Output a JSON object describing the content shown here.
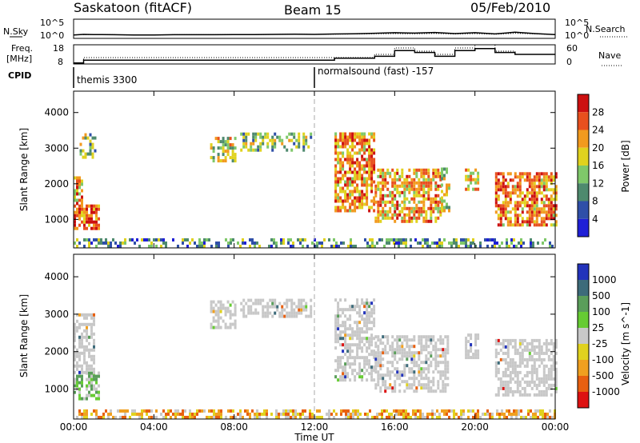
{
  "header": {
    "station": "Saskatoon (fitACF)",
    "beam": "Beam 15",
    "date": "05/Feb/2010"
  },
  "noise_panel": {
    "left_label": "N.Sky",
    "left_ticks": [
      "10^5",
      "10^0"
    ],
    "right_label": "N.Search",
    "right_ticks": [
      "10^5",
      "10^0"
    ]
  },
  "freq_panel": {
    "left_label_1": "Freq.",
    "left_label_2": "[MHz]",
    "left_ticks": [
      "18",
      "8"
    ],
    "right_label": "Nave",
    "right_ticks": [
      "60",
      "0"
    ]
  },
  "cpid_panel": {
    "label": "CPID",
    "modes": [
      {
        "name": "themis 3300",
        "start_hour": 0
      },
      {
        "name": "normalsound (fast) -157",
        "start_hour": 12
      }
    ]
  },
  "colors": {
    "power_scale": [
      "#1f1fd6",
      "#2f4fa8",
      "#4e8a6e",
      "#7fc86a",
      "#e0d21e",
      "#f29a1e",
      "#e8501e",
      "#cc1010"
    ],
    "velocity_scale": [
      "#2233bb",
      "#3d6b7a",
      "#5a9e5a",
      "#66cc33",
      "#c8c8c8",
      "#e0d21e",
      "#f0a020",
      "#e86010",
      "#dd1111"
    ],
    "ground_scatter": "#c8c8c8"
  },
  "x_axis": {
    "title": "Time UT",
    "ticks": [
      "00:00",
      "04:00",
      "08:00",
      "12:00",
      "16:00",
      "20:00",
      "00:00"
    ]
  },
  "chart_data": [
    {
      "type": "line",
      "title": "N.Sky / N.Search",
      "x": [
        0,
        0.5,
        1,
        2,
        3,
        4,
        5,
        6,
        7,
        8,
        9,
        10,
        11,
        12,
        13,
        14,
        15,
        16,
        17,
        18,
        19,
        20,
        21,
        22,
        23,
        24
      ],
      "series": [
        {
          "name": "N.Sky",
          "values": [
            8,
            11,
            10,
            9,
            8,
            8,
            9,
            9,
            9,
            10,
            10,
            11,
            12,
            11,
            14,
            16,
            22,
            30,
            24,
            35,
            18,
            30,
            15,
            40,
            18,
            10
          ]
        },
        {
          "name": "N.Search",
          "values": [
            8,
            10,
            10,
            9,
            8,
            8,
            9,
            9,
            9,
            10,
            10,
            11,
            12,
            11,
            13,
            14,
            16,
            18,
            16,
            20,
            14,
            18,
            12,
            22,
            15,
            10
          ]
        }
      ],
      "ylim": [
        1,
        100000
      ],
      "yscale": "log"
    },
    {
      "type": "line",
      "title": "Freq / Nave",
      "x": [
        0,
        0.5,
        13,
        15,
        16,
        17,
        18,
        19,
        20,
        21,
        22,
        23,
        24
      ],
      "series": [
        {
          "name": "Freq",
          "values": [
            8.5,
            10,
            11,
            12,
            15,
            14,
            12,
            15,
            16,
            14,
            13,
            13,
            13
          ]
        },
        {
          "name": "Nave",
          "values": [
            0,
            20,
            20,
            30,
            50,
            40,
            30,
            50,
            60,
            40,
            30,
            30,
            30
          ]
        }
      ],
      "ylim": [
        8,
        18
      ]
    },
    {
      "type": "heatmap",
      "title": "Power",
      "ylabel": "Slant Range [km]",
      "xlabel": "Time UT",
      "y_ticks": [
        1000,
        2000,
        3000,
        4000
      ],
      "ylim": [
        200,
        4600
      ],
      "xlim": [
        0,
        24
      ],
      "colorbar_label": "Power [dB]",
      "colorbar_ticks": [
        4,
        8,
        12,
        16,
        20,
        24,
        28
      ],
      "echo_regions": [
        {
          "t0": 0.0,
          "t1": 1.2,
          "r0": 700,
          "r1": 1400,
          "level": 0.85
        },
        {
          "t0": 0.0,
          "t1": 0.4,
          "r0": 1400,
          "r1": 2200,
          "level": 0.7
        },
        {
          "t0": 0.3,
          "t1": 1.1,
          "r0": 2700,
          "r1": 3400,
          "level": 0.45
        },
        {
          "t0": 6.8,
          "t1": 8.1,
          "r0": 2600,
          "r1": 3300,
          "level": 0.55
        },
        {
          "t0": 8.3,
          "t1": 11.8,
          "r0": 2900,
          "r1": 3400,
          "level": 0.4
        },
        {
          "t0": 13.0,
          "t1": 15.0,
          "r0": 1200,
          "r1": 3400,
          "level": 0.75
        },
        {
          "t0": 15.0,
          "t1": 18.3,
          "r0": 900,
          "r1": 2400,
          "level": 0.7
        },
        {
          "t0": 18.3,
          "t1": 18.7,
          "r0": 1200,
          "r1": 2400,
          "level": 0.5
        },
        {
          "t0": 19.5,
          "t1": 20.2,
          "r0": 1800,
          "r1": 2400,
          "level": 0.6
        },
        {
          "t0": 21.0,
          "t1": 24.0,
          "r0": 800,
          "r1": 2300,
          "level": 0.75
        },
        {
          "t0": 0.0,
          "t1": 24.0,
          "r0": 200,
          "r1": 450,
          "level": 0.3
        }
      ]
    },
    {
      "type": "heatmap",
      "title": "Velocity",
      "ylabel": "Slant Range [km]",
      "xlabel": "Time UT",
      "y_ticks": [
        1000,
        2000,
        3000,
        4000
      ],
      "ylim": [
        200,
        4600
      ],
      "xlim": [
        0,
        24
      ],
      "colorbar_label": "Velocity [m s^-1]",
      "colorbar_ticks": [
        1000,
        500,
        100,
        25,
        -25,
        -100,
        -500,
        -1000
      ],
      "echo_regions": [
        {
          "t0": 0.0,
          "t1": 1.2,
          "r0": 700,
          "r1": 1400,
          "kind": "positive"
        },
        {
          "t0": 0.0,
          "t1": 1.0,
          "r0": 1400,
          "r1": 3000,
          "kind": "ground"
        },
        {
          "t0": 6.8,
          "t1": 8.1,
          "r0": 2600,
          "r1": 3300,
          "kind": "ground"
        },
        {
          "t0": 8.3,
          "t1": 11.8,
          "r0": 2900,
          "r1": 3400,
          "kind": "ground"
        },
        {
          "t0": 13.0,
          "t1": 15.0,
          "r0": 1200,
          "r1": 3400,
          "kind": "ground"
        },
        {
          "t0": 15.0,
          "t1": 18.7,
          "r0": 900,
          "r1": 2400,
          "kind": "ground"
        },
        {
          "t0": 19.5,
          "t1": 20.2,
          "r0": 1800,
          "r1": 2400,
          "kind": "ground"
        },
        {
          "t0": 21.0,
          "t1": 24.0,
          "r0": 800,
          "r1": 2300,
          "kind": "ground"
        },
        {
          "t0": 0.0,
          "t1": 24.0,
          "r0": 200,
          "r1": 450,
          "kind": "negative"
        }
      ]
    }
  ]
}
